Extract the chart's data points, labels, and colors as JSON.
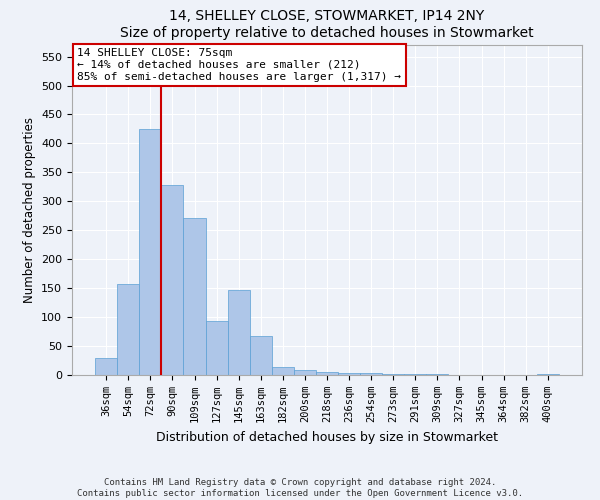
{
  "title1": "14, SHELLEY CLOSE, STOWMARKET, IP14 2NY",
  "title2": "Size of property relative to detached houses in Stowmarket",
  "xlabel": "Distribution of detached houses by size in Stowmarket",
  "ylabel": "Number of detached properties",
  "categories": [
    "36sqm",
    "54sqm",
    "72sqm",
    "90sqm",
    "109sqm",
    "127sqm",
    "145sqm",
    "163sqm",
    "182sqm",
    "200sqm",
    "218sqm",
    "236sqm",
    "254sqm",
    "273sqm",
    "291sqm",
    "309sqm",
    "327sqm",
    "345sqm",
    "364sqm",
    "382sqm",
    "400sqm"
  ],
  "values": [
    30,
    157,
    425,
    328,
    272,
    93,
    146,
    68,
    13,
    9,
    6,
    4,
    3,
    2,
    1,
    1,
    0,
    0,
    0,
    0,
    2
  ],
  "bar_color": "#aec6e8",
  "bar_edge_color": "#5a9fd4",
  "vline_color": "#cc0000",
  "vline_x_index": 2,
  "annotation_text_line1": "14 SHELLEY CLOSE: 75sqm",
  "annotation_text_line2": "← 14% of detached houses are smaller (212)",
  "annotation_text_line3": "85% of semi-detached houses are larger (1,317) →",
  "annotation_box_color": "#ffffff",
  "annotation_box_edge_color": "#cc0000",
  "ylim": [
    0,
    570
  ],
  "yticks": [
    0,
    50,
    100,
    150,
    200,
    250,
    300,
    350,
    400,
    450,
    500,
    550
  ],
  "footer1": "Contains HM Land Registry data © Crown copyright and database right 2024.",
  "footer2": "Contains public sector information licensed under the Open Government Licence v3.0.",
  "bg_color": "#eef2f9",
  "plot_bg_color": "#eef2f9",
  "grid_color": "#ffffff"
}
